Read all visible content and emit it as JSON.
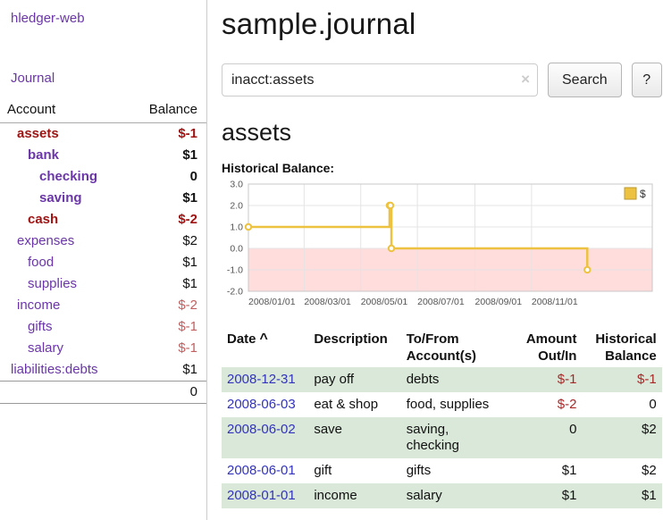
{
  "app_title": "hledger-web",
  "colors": {
    "link_purple": "#6a36a8",
    "negative_dark_red": "#a01313",
    "negative_soft_red": "#c06060",
    "table_negative_red": "#a82828",
    "date_link_blue": "#3333bb",
    "row_green": "#d9e8d9",
    "chart_line_gold": "#edc240",
    "chart_negative_region": "#ffdddd"
  },
  "sidebar": {
    "journal_link": "Journal",
    "accounts": {
      "header_account": "Account",
      "header_balance": "Balance",
      "rows": [
        {
          "name": "assets",
          "balance": "$-1"
        },
        {
          "name": "bank",
          "balance": "$1"
        },
        {
          "name": "checking",
          "balance": "0"
        },
        {
          "name": "saving",
          "balance": "$1"
        },
        {
          "name": "cash",
          "balance": "$-2"
        },
        {
          "name": "expenses",
          "balance": "$2"
        },
        {
          "name": "food",
          "balance": "$1"
        },
        {
          "name": "supplies",
          "balance": "$1"
        },
        {
          "name": "income",
          "balance": "$-2"
        },
        {
          "name": "gifts",
          "balance": "$-1"
        },
        {
          "name": "salary",
          "balance": "$-1"
        },
        {
          "name": "liabilities:debts",
          "balance": "$1"
        }
      ],
      "total": "0"
    }
  },
  "main": {
    "title": "sample.journal",
    "search": {
      "value": "inacct:assets",
      "clear": "×",
      "button": "Search",
      "help": "?"
    },
    "account_heading": "assets",
    "chart_label": "Historical Balance:"
  },
  "chart_data": {
    "type": "line",
    "style": "steps",
    "title": "Historical Balance",
    "ylim": [
      -2,
      3
    ],
    "x_domain": [
      0,
      435
    ],
    "grid": true,
    "legend_position": "top-right",
    "negative_region_color": "#ffdddd",
    "series": [
      {
        "name": "$",
        "color": "#edc240",
        "points": [
          {
            "date": "2008-01-01",
            "day": 0,
            "value": 1
          },
          {
            "date": "2008-06-01",
            "day": 152,
            "value": 2
          },
          {
            "date": "2008-06-02",
            "day": 153,
            "value": 2
          },
          {
            "date": "2008-06-03",
            "day": 154,
            "value": 0
          },
          {
            "date": "2008-12-31",
            "day": 365,
            "value": -1
          }
        ]
      }
    ],
    "x_ticks": [
      {
        "day": 0,
        "label": "2008/01/01"
      },
      {
        "day": 60,
        "label": "2008/03/01"
      },
      {
        "day": 121,
        "label": "2008/05/01"
      },
      {
        "day": 182,
        "label": "2008/07/01"
      },
      {
        "day": 244,
        "label": "2008/09/01"
      },
      {
        "day": 305,
        "label": "2008/11/01"
      }
    ],
    "y_ticks": [
      {
        "value": 3,
        "label": "3.0"
      },
      {
        "value": 2,
        "label": "2.0"
      },
      {
        "value": 1,
        "label": "1.0"
      },
      {
        "value": 0,
        "label": "0.0"
      },
      {
        "value": -1,
        "label": "-1.0"
      },
      {
        "value": -2,
        "label": "-2.0"
      }
    ],
    "legend": {
      "label": "$",
      "swatch_color": "#edc240"
    }
  },
  "register": {
    "headers": {
      "date": "Date",
      "sort": "^",
      "description": "Description",
      "accounts": "To/From\nAccount(s)",
      "amount": "Amount\nOut/In",
      "balance": "Historical\nBalance"
    },
    "rows": [
      {
        "date": "2008-12-31",
        "description": "pay off",
        "accounts": "debts",
        "amount": "$-1",
        "balance": "$-1"
      },
      {
        "date": "2008-06-03",
        "description": "eat & shop",
        "accounts": "food, supplies",
        "amount": "$-2",
        "balance": "0"
      },
      {
        "date": "2008-06-02",
        "description": "save",
        "accounts": "saving,\nchecking",
        "amount": "0",
        "balance": "$2"
      },
      {
        "date": "2008-06-01",
        "description": "gift",
        "accounts": "gifts",
        "amount": "$1",
        "balance": "$2"
      },
      {
        "date": "2008-01-01",
        "description": "income",
        "accounts": "salary",
        "amount": "$1",
        "balance": "$1"
      }
    ]
  }
}
